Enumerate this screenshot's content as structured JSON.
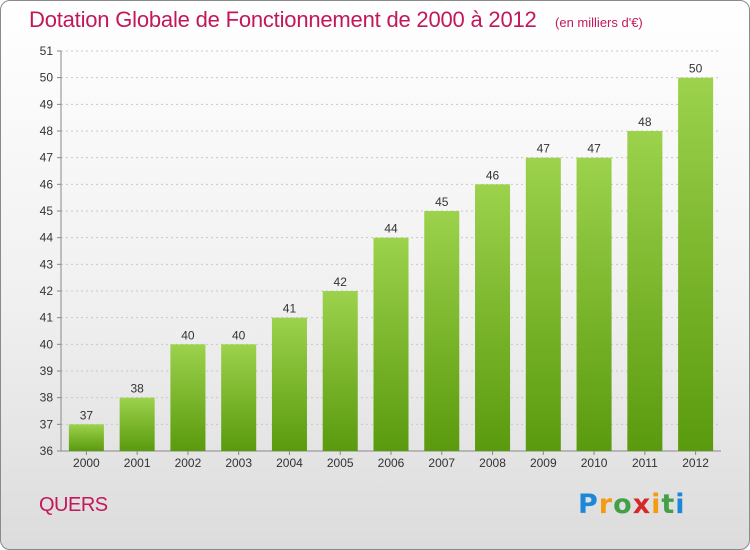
{
  "header": {
    "title": "Dotation Globale de Fonctionnement de 2000 à 2012",
    "unit": "(en milliers d'€)"
  },
  "commune": "QUERS",
  "logo": {
    "text": "Proxiti",
    "letters": [
      {
        "ch": "P",
        "color": "#1e88d8"
      },
      {
        "ch": "r",
        "color": "#f39c12"
      },
      {
        "ch": "o",
        "color": "#43a047"
      },
      {
        "ch": "x",
        "color": "#d62828"
      },
      {
        "ch": "i",
        "color": "#f39c12"
      },
      {
        "ch": "t",
        "color": "#43a047"
      },
      {
        "ch": "i",
        "color": "#1e88d8"
      }
    ]
  },
  "colors": {
    "accent": "#c2185b",
    "bar_top": "#9cd24c",
    "bar_bottom": "#5a9a0e",
    "axis_text": "#333333",
    "grid": "#c8c8c8"
  },
  "chart_data": {
    "type": "bar",
    "categories": [
      "2000",
      "2001",
      "2002",
      "2003",
      "2004",
      "2005",
      "2006",
      "2007",
      "2008",
      "2009",
      "2010",
      "2011",
      "2012"
    ],
    "values": [
      37,
      38,
      40,
      40,
      41,
      42,
      44,
      45,
      46,
      47,
      47,
      48,
      50
    ],
    "title": "Dotation Globale de Fonctionnement de 2000 à 2012",
    "xlabel": "",
    "ylabel": "",
    "ylim": [
      36,
      51
    ],
    "yticks": [
      36,
      37,
      38,
      39,
      40,
      41,
      42,
      43,
      44,
      45,
      46,
      47,
      48,
      49,
      50,
      51
    ],
    "grid": true,
    "legend": "none"
  }
}
